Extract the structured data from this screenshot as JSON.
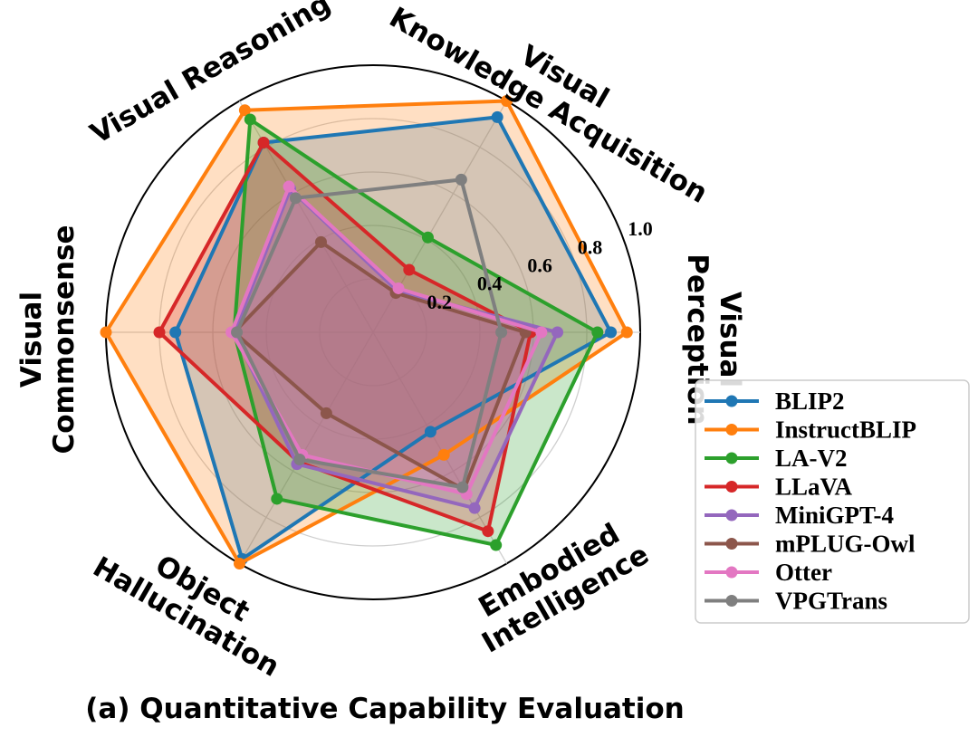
{
  "chart_data": {
    "type": "radar",
    "axes": [
      "Visual Perception",
      "Visual Knowledge Acquisition",
      "Visual Reasoning",
      "Visual Commonsense",
      "Object Hallucination",
      "Embodied Intelligence"
    ],
    "axis_labels": [
      {
        "lines": [
          "Visual",
          "Perception"
        ]
      },
      {
        "lines": [
          "Visual",
          "Knowledge Acquisition"
        ]
      },
      {
        "lines": [
          "Visual Reasoning"
        ]
      },
      {
        "lines": [
          "Visual",
          "Commonsense"
        ]
      },
      {
        "lines": [
          "Object",
          "Hallucination"
        ]
      },
      {
        "lines": [
          "Embodied",
          "Intelligence"
        ]
      }
    ],
    "radial_ticks": [
      0.2,
      0.4,
      0.6,
      0.8,
      1.0
    ],
    "radial_tick_labels": [
      "0.2",
      "0.4",
      "0.6",
      "0.8",
      "1.0"
    ],
    "rlim": [
      0,
      1.0
    ],
    "grid": true,
    "legend_position": "right",
    "series": [
      {
        "name": "BLIP2",
        "color": "#1f77b4",
        "values": [
          0.89,
          0.93,
          0.82,
          0.74,
          0.98,
          0.43
        ],
        "fill": true
      },
      {
        "name": "InstructBLIP",
        "color": "#ff7f0e",
        "values": [
          0.95,
          1.0,
          0.96,
          1.0,
          1.0,
          0.53
        ],
        "fill": true
      },
      {
        "name": "LA-V2",
        "color": "#2ca02c",
        "values": [
          0.84,
          0.41,
          0.92,
          0.52,
          0.72,
          0.92
        ],
        "fill": true
      },
      {
        "name": "LLaVA",
        "color": "#d62728",
        "values": [
          0.59,
          0.27,
          0.82,
          0.8,
          0.56,
          0.86
        ],
        "fill": true
      },
      {
        "name": "MiniGPT-4",
        "color": "#9467bd",
        "values": [
          0.69,
          0.18,
          0.62,
          0.52,
          0.57,
          0.76
        ],
        "fill": true
      },
      {
        "name": "mPLUG-Owl",
        "color": "#8c564b",
        "values": [
          0.57,
          0.17,
          0.39,
          0.52,
          0.35,
          0.68
        ],
        "fill": true
      },
      {
        "name": "Otter",
        "color": "#e377c2",
        "values": [
          0.63,
          0.19,
          0.63,
          0.53,
          0.53,
          0.7
        ],
        "fill": true
      },
      {
        "name": "VPGTrans",
        "color": "#7f7f7f",
        "values": [
          0.48,
          0.66,
          0.58,
          0.51,
          0.55,
          0.67
        ],
        "fill": false
      }
    ]
  },
  "caption": "(a) Quantitative Capability Evaluation"
}
